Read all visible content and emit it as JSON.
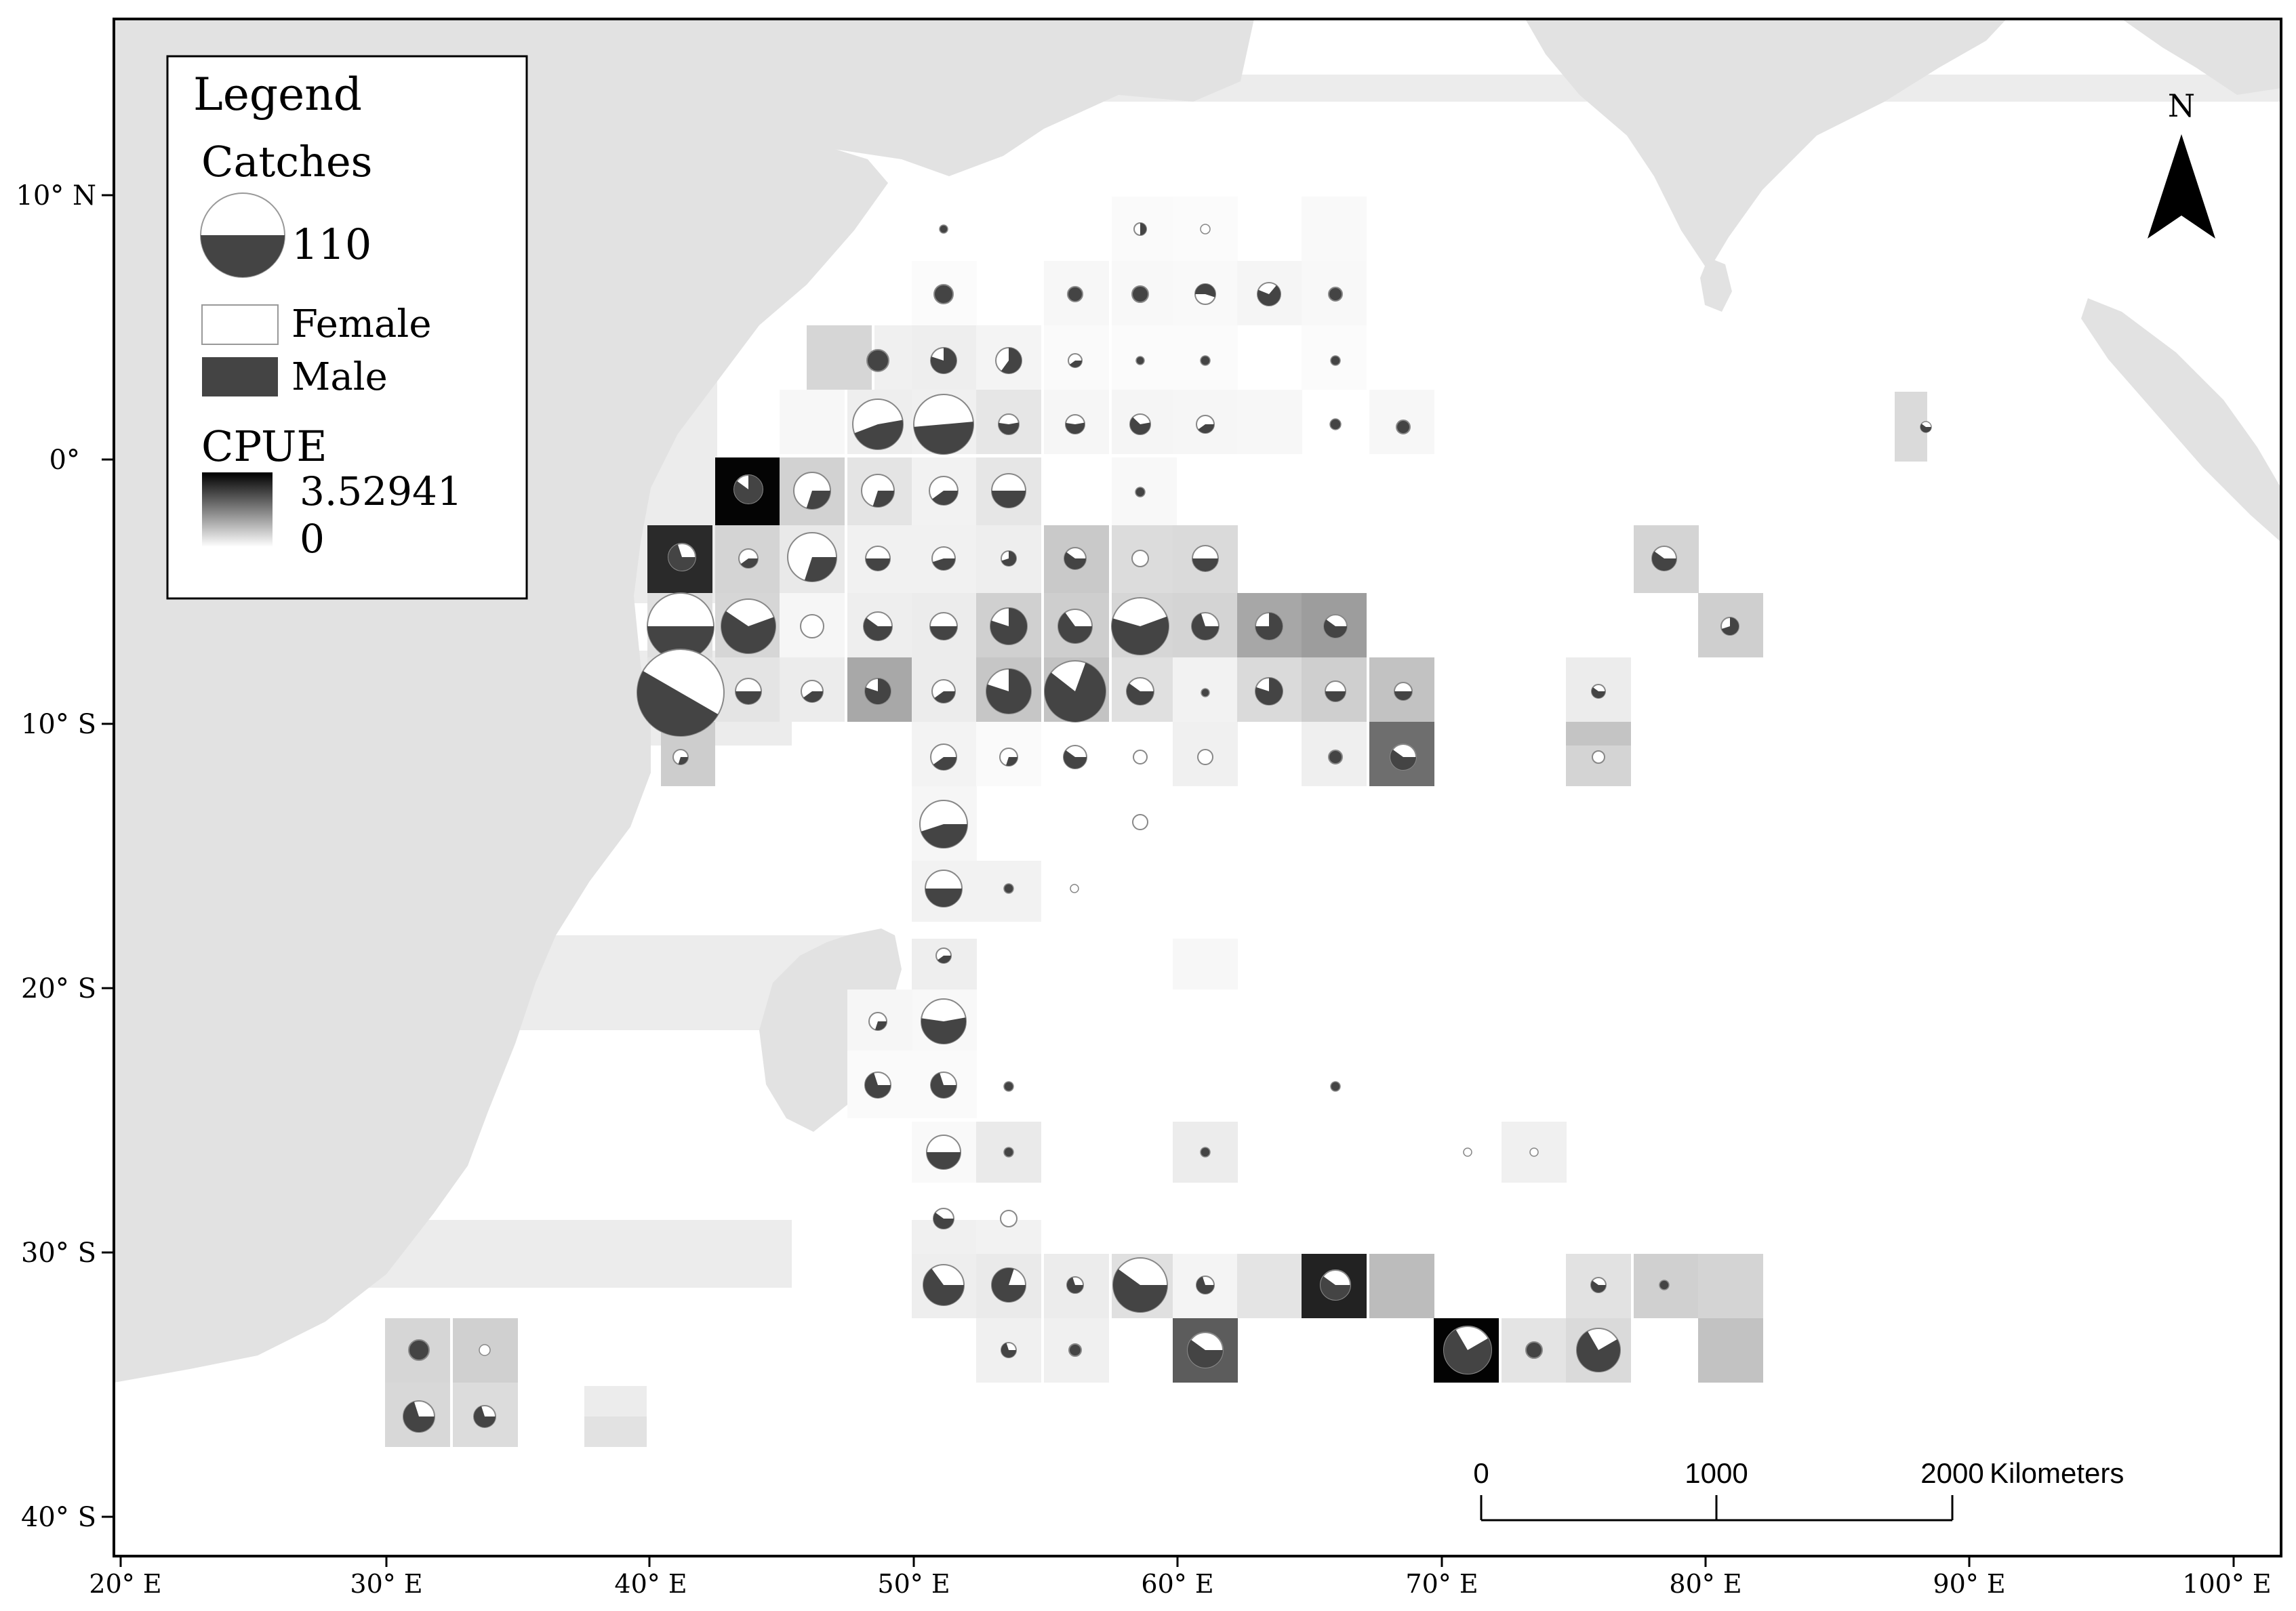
{
  "map": {
    "legend": {
      "title": "Legend",
      "catches_label": "Catches",
      "catches_value": "110",
      "female_label": "Female",
      "male_label": "Male",
      "cpue_label": "CPUE",
      "cpue_max": "3.52941",
      "cpue_min": "0"
    },
    "north_label": "N",
    "scale_bar": {
      "ticks": [
        "0",
        "1000",
        "2000"
      ],
      "units": "Kilometers"
    },
    "lat_labels": [
      "10° N",
      "0°",
      "10° S",
      "20° S",
      "30° S",
      "40° S"
    ],
    "lon_labels": [
      "20° E",
      "30° E",
      "40° E",
      "50° E",
      "60° E",
      "70° E",
      "80° E",
      "90° E",
      "100° E"
    ],
    "colors": {
      "land": "#e2e2e2",
      "band": "#ececec",
      "male": "#444444",
      "female": "#ffffff",
      "cpue_high": "#000000",
      "cpue_low": "#ffffff"
    }
  }
}
